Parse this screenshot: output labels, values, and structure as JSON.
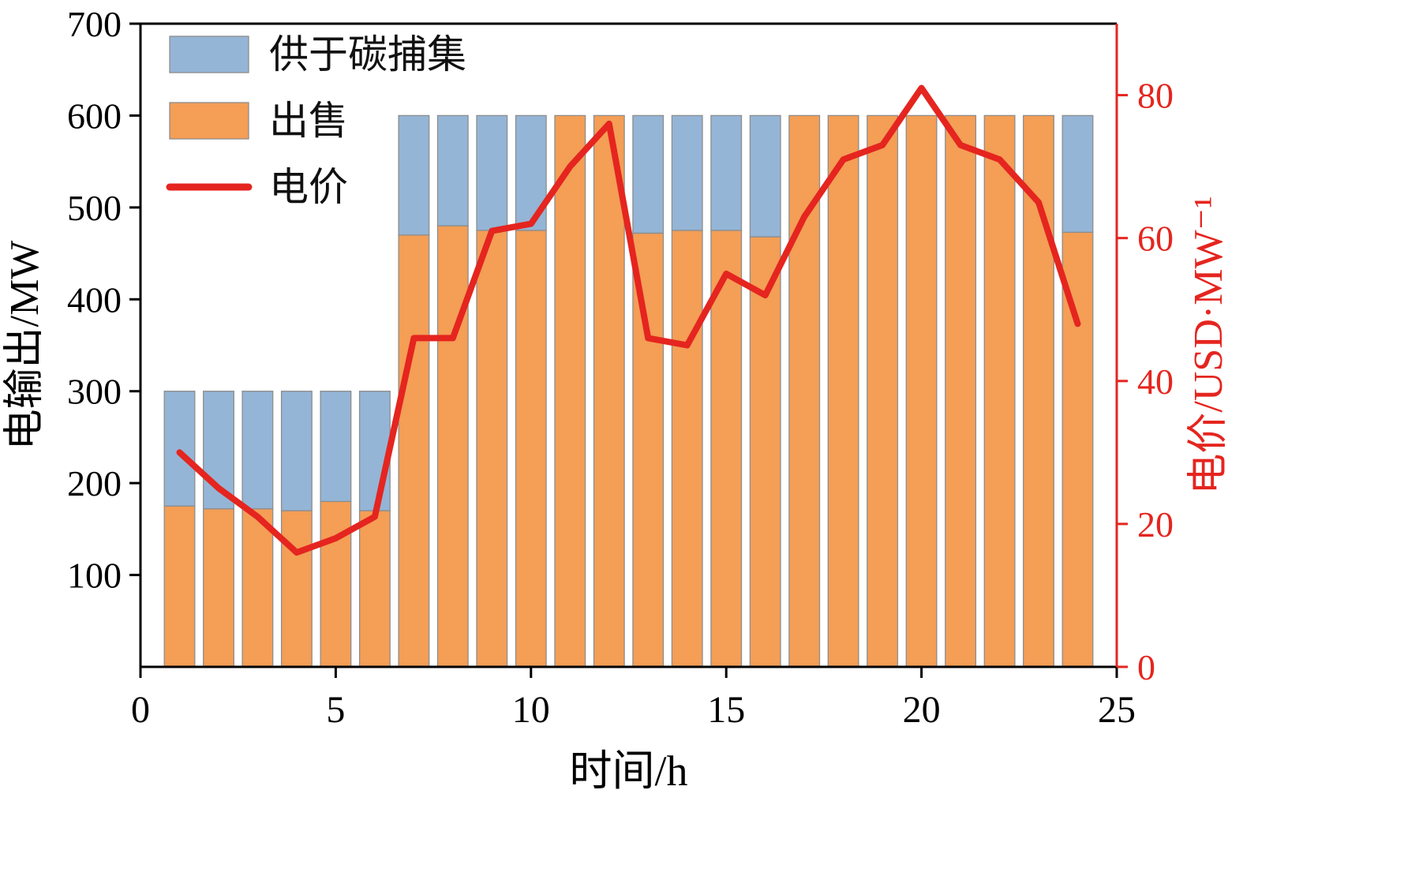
{
  "chart_data": {
    "type": "bar",
    "stacked": true,
    "dual_axis": true,
    "categories": [
      1,
      2,
      3,
      4,
      5,
      6,
      7,
      8,
      9,
      10,
      11,
      12,
      13,
      14,
      15,
      16,
      17,
      18,
      19,
      20,
      21,
      22,
      23,
      24
    ],
    "series": [
      {
        "name": "出售",
        "kind": "bar",
        "axis": "left",
        "color": "#f49e56",
        "values": [
          175,
          172,
          172,
          170,
          180,
          170,
          470,
          480,
          475,
          475,
          600,
          600,
          472,
          475,
          475,
          468,
          600,
          600,
          600,
          600,
          600,
          600,
          600,
          473
        ]
      },
      {
        "name": "供于碳捕集",
        "kind": "bar",
        "axis": "left",
        "color": "#94b5d6",
        "values": [
          125,
          128,
          128,
          130,
          120,
          130,
          130,
          120,
          125,
          125,
          0,
          0,
          128,
          125,
          125,
          132,
          0,
          0,
          0,
          0,
          0,
          0,
          0,
          127
        ]
      },
      {
        "name": "电价",
        "kind": "line",
        "axis": "right",
        "color": "#e5251f",
        "values": [
          30,
          25,
          21,
          16,
          18,
          21,
          46,
          46,
          61,
          62,
          70,
          76,
          46,
          45,
          55,
          52,
          63,
          71,
          73,
          81,
          73,
          71,
          65,
          48
        ]
      }
    ],
    "title": "",
    "xlabel": "时间/h",
    "ylabel_left": "电输出/MW",
    "ylabel_right": "电价/USD·MW⁻¹",
    "xlim": [
      0,
      25
    ],
    "ylim_left": [
      0,
      700
    ],
    "ylim_right": [
      0,
      90
    ],
    "xticks": [
      0,
      5,
      10,
      15,
      20,
      25
    ],
    "yticks_left": [
      100,
      200,
      300,
      400,
      500,
      600,
      700
    ],
    "yticks_right": [
      0,
      20,
      40,
      60,
      80
    ],
    "grid": false,
    "legend_position": "upper-left-inside",
    "legend": [
      {
        "label": "供于碳捕集",
        "swatch": "rect",
        "color": "#94b5d6"
      },
      {
        "label": "出售",
        "swatch": "rect",
        "color": "#f49e56"
      },
      {
        "label": "电价",
        "swatch": "line",
        "color": "#e5251f"
      }
    ],
    "colors": {
      "axis_left": "#000000",
      "axis_right": "#e5251f",
      "bar_edge": "#8d8d8d",
      "background": "#ffffff"
    }
  }
}
